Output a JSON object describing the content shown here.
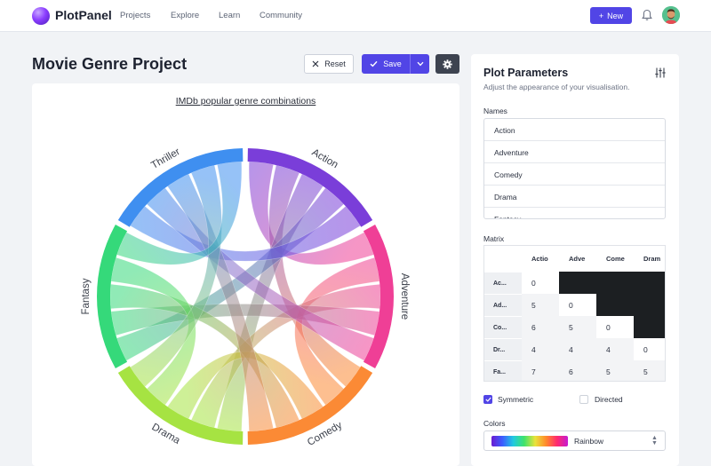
{
  "app": {
    "brand": "PlotPanel"
  },
  "nav": {
    "links": [
      "Projects",
      "Explore",
      "Learn",
      "Community"
    ],
    "new_label": "New"
  },
  "page": {
    "title": "Movie Genre Project",
    "reset_label": "Reset",
    "save_label": "Save"
  },
  "chart_data": {
    "type": "chord",
    "title": "IMDb popular genre combinations",
    "groups": [
      "Action",
      "Adventure",
      "Comedy",
      "Drama",
      "Fantasy",
      "Thriller"
    ],
    "group_colors": [
      "#7a3ed9",
      "#ef3f96",
      "#fb8a35",
      "#a6e342",
      "#35d97a",
      "#3f8ff0"
    ],
    "links": [
      [
        "Action",
        "Adventure"
      ],
      [
        "Action",
        "Comedy"
      ],
      [
        "Action",
        "Drama"
      ],
      [
        "Action",
        "Fantasy"
      ],
      [
        "Action",
        "Thriller"
      ],
      [
        "Adventure",
        "Comedy"
      ],
      [
        "Adventure",
        "Drama"
      ],
      [
        "Adventure",
        "Fantasy"
      ],
      [
        "Adventure",
        "Thriller"
      ],
      [
        "Comedy",
        "Drama"
      ],
      [
        "Comedy",
        "Fantasy"
      ],
      [
        "Comedy",
        "Thriller"
      ],
      [
        "Drama",
        "Fantasy"
      ],
      [
        "Drama",
        "Thriller"
      ],
      [
        "Fantasy",
        "Thriller"
      ]
    ]
  },
  "params": {
    "title": "Plot Parameters",
    "subtitle": "Adjust the appearance of your visualisation.",
    "names_label": "Names",
    "names": [
      "Action",
      "Adventure",
      "Comedy",
      "Drama",
      "Fantasy"
    ],
    "matrix_label": "Matrix",
    "matrix": {
      "columns": [
        "Actio",
        "Adve",
        "Come",
        "Dram"
      ],
      "row_headers": [
        "Ac...",
        "Ad...",
        "Co...",
        "Dr...",
        "Fa..."
      ],
      "rows": [
        [
          "0",
          "",
          "",
          ""
        ],
        [
          "5",
          "0",
          "",
          ""
        ],
        [
          "6",
          "5",
          "0",
          ""
        ],
        [
          "4",
          "4",
          "4",
          "0"
        ],
        [
          "7",
          "6",
          "5",
          "5"
        ]
      ]
    },
    "symmetric_label": "Symmetric",
    "symmetric_checked": true,
    "directed_label": "Directed",
    "directed_checked": false,
    "colors_label": "Colors",
    "colors_value": "Rainbow"
  }
}
